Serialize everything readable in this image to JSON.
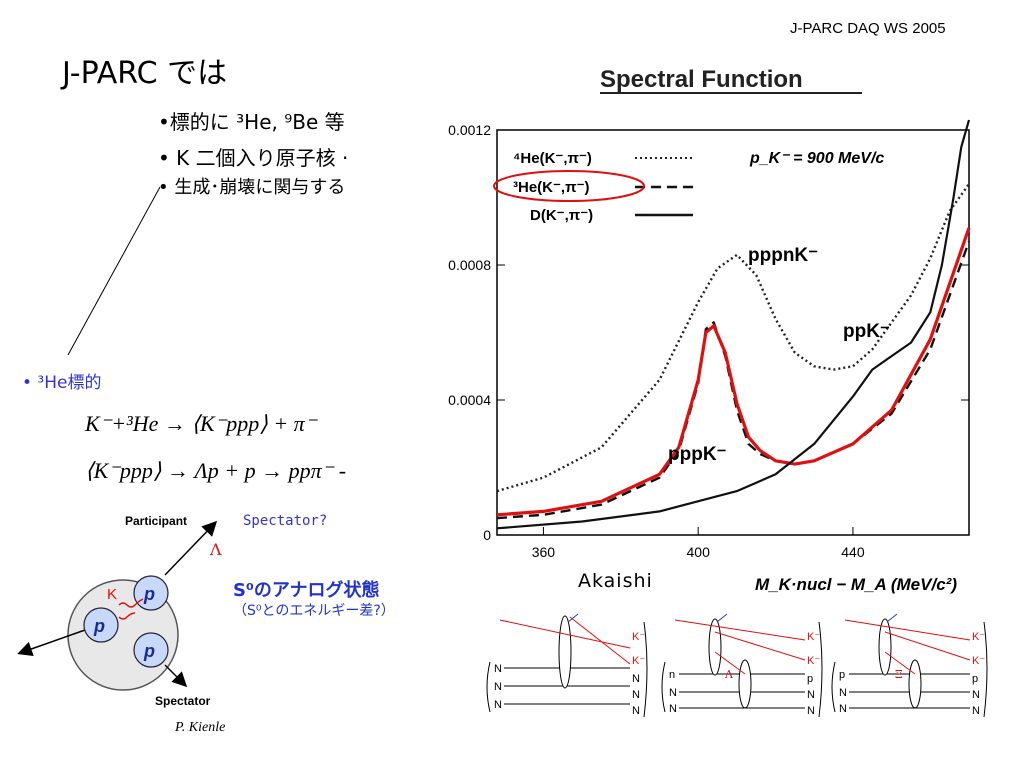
{
  "header": {
    "workshop": "J-PARC DAQ WS 2005"
  },
  "slide": {
    "title": "J-PARC では",
    "bullets": [
      "•標的に ³He, ⁹Be 等",
      "• K 二個入り原子核 ·",
      "• 生成･崩壊に関与する"
    ],
    "he_target_label": "• ³He標的",
    "equation_1": "K⁻+³He → ⟨K⁻ppp⟩ + π⁻",
    "equation_2": "⟨K⁻ppp⟩ → Λp + p → ppπ⁻ -",
    "analog_line1": "S⁰のアナログ状態",
    "analog_line2": "（S⁰とのエネルギー差?）",
    "credit": "Akaishi",
    "author": "P. Kienle"
  },
  "nucleus_diagram": {
    "participant_label": "Participant",
    "spectator_label": "Spectator",
    "spectator_question": "Spectator?",
    "lambda_label": "Λ",
    "kaon_label": "K",
    "proton_label": "p",
    "highlight_color": "#e01010",
    "accent_color": "#3333cc"
  },
  "feynman_diagrams": [
    {
      "left": [
        "N",
        "N",
        "N"
      ],
      "right": [
        "K⁻",
        "K⁻",
        "N",
        "N",
        "N"
      ]
    },
    {
      "left": [
        "n",
        "N",
        "N"
      ],
      "right": [
        "K⁻",
        "K⁻",
        "Λ",
        "p",
        "N",
        "N"
      ]
    },
    {
      "left": [
        "p",
        "N",
        "N"
      ],
      "right": [
        "K⁻",
        "K⁻",
        "Ξ",
        "p",
        "N",
        "N"
      ]
    }
  ],
  "chart_data": {
    "type": "line",
    "title": "Spectral Function",
    "xlabel": "M_K·nucl − M_A (MeV/c²)",
    "ylabel": "",
    "xlim": [
      348,
      470
    ],
    "ylim": [
      0,
      0.0012
    ],
    "x_ticks": [
      360,
      400,
      440
    ],
    "y_ticks": [
      "0",
      "0.0004",
      "0.0008",
      "0.0012"
    ],
    "beam_annotation": "p_K⁻ = 900 MeV/c",
    "legend_position": "top-left",
    "legend": [
      "⁴He(K⁻,π⁻)",
      "³He(K⁻,π⁻)",
      "D(K⁻,π⁻)"
    ],
    "annotations": [
      "pppnK⁻",
      "ppK⁻",
      "pppK⁻"
    ],
    "series": [
      {
        "name": "⁴He(K⁻,π⁻)",
        "style": "dotted",
        "color": "#222222",
        "x": [
          348,
          360,
          375,
          390,
          400,
          405,
          410,
          415,
          420,
          425,
          430,
          435,
          440,
          445,
          450,
          455,
          460,
          465,
          470
        ],
        "y": [
          0.00013,
          0.00017,
          0.00026,
          0.00046,
          0.00069,
          0.00079,
          0.00083,
          0.00077,
          0.00064,
          0.00054,
          0.0005,
          0.00049,
          0.0005,
          0.00055,
          0.00063,
          0.00071,
          0.00082,
          0.00096,
          0.00104
        ]
      },
      {
        "name": "³He(K⁻,π⁻)",
        "style": "dashed",
        "color": "#111111",
        "x": [
          348,
          360,
          375,
          390,
          395,
          400,
          402,
          404,
          407,
          410,
          413,
          416,
          420,
          425,
          430,
          440,
          450,
          460,
          470
        ],
        "y": [
          5e-05,
          6e-05,
          9e-05,
          0.00017,
          0.00025,
          0.00045,
          0.00061,
          0.00063,
          0.00053,
          0.00037,
          0.00027,
          0.00024,
          0.00022,
          0.00021,
          0.00022,
          0.00027,
          0.00036,
          0.00055,
          0.00087
        ]
      },
      {
        "name": "³He(K⁻,π⁻) (red)",
        "style": "solid",
        "color": "#e01010",
        "x": [
          348,
          360,
          375,
          390,
          395,
          400,
          402,
          404,
          407,
          410,
          413,
          416,
          420,
          425,
          430,
          440,
          450,
          460,
          470
        ],
        "y": [
          6e-05,
          7e-05,
          0.0001,
          0.00018,
          0.00026,
          0.00046,
          0.0006,
          0.00062,
          0.00054,
          0.00039,
          0.00029,
          0.00025,
          0.00022,
          0.00021,
          0.00022,
          0.00027,
          0.00037,
          0.00058,
          0.00091
        ]
      },
      {
        "name": "D(K⁻,π⁻)",
        "style": "solid",
        "color": "#111111",
        "x": [
          348,
          370,
          390,
          410,
          420,
          430,
          440,
          445,
          450,
          455,
          460,
          463,
          466,
          468,
          470
        ],
        "y": [
          2e-05,
          4e-05,
          7e-05,
          0.00013,
          0.00018,
          0.00027,
          0.00041,
          0.00049,
          0.00053,
          0.00057,
          0.00066,
          0.0008,
          0.001,
          0.00115,
          0.0013
        ]
      }
    ]
  }
}
